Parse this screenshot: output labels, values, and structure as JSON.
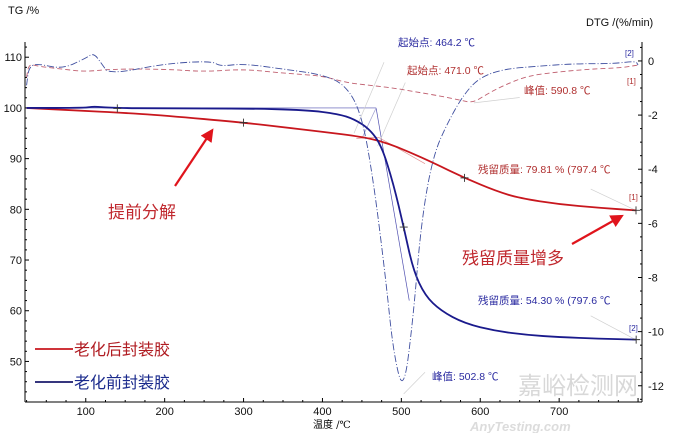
{
  "chart_data": {
    "type": "line",
    "xlabel": "温度 /℃",
    "ylabel_left": "TG /%",
    "ylabel_right": "DTG /(%/min)",
    "xlim": [
      23,
      805
    ],
    "ylim_left": [
      42,
      113
    ],
    "ylim_right": [
      -12.6,
      0.7
    ],
    "x_ticks": [
      100,
      200,
      300,
      400,
      500,
      600,
      700
    ],
    "y_ticks_left": [
      50,
      60,
      70,
      80,
      90,
      100,
      110
    ],
    "y_ticks_right": [
      -12,
      -10,
      -8,
      -6,
      -4,
      -2,
      0
    ],
    "grid": false,
    "legend_placement": "bottom-left",
    "colors": {
      "aged": "#c8171e",
      "unaged": "#1a1a8c",
      "aged_dtg": "#c06070",
      "unaged_dtg": "#4050a0"
    },
    "series": [
      {
        "name": "老化后封装胶",
        "axis": "left",
        "style": "solid",
        "color": "#c8171e",
        "x": [
          25,
          100,
          140,
          200,
          300,
          350,
          400,
          450,
          480,
          510,
          540,
          580,
          620,
          650,
          700,
          750,
          797
        ],
        "y": [
          100,
          99.4,
          99.1,
          98.5,
          97.1,
          96.2,
          95.3,
          94.3,
          93.2,
          91.3,
          89.2,
          86.2,
          83.6,
          82.2,
          81,
          80.3,
          79.8
        ]
      },
      {
        "name": "老化前封装胶",
        "axis": "left",
        "style": "solid",
        "color": "#1a1a8c",
        "x": [
          25,
          100,
          110,
          130,
          200,
          300,
          380,
          420,
          440,
          460,
          475,
          490,
          503,
          515,
          530,
          550,
          580,
          620,
          660,
          700,
          750,
          797.6
        ],
        "y": [
          100,
          100,
          100.3,
          100,
          99.9,
          99.9,
          99.6,
          98.8,
          97.8,
          95.8,
          92.5,
          85,
          76.5,
          68,
          63,
          60,
          57.5,
          56,
          55.2,
          54.8,
          54.5,
          54.3
        ]
      },
      {
        "name": "DTG [1]",
        "axis": "right",
        "style": "dashed",
        "color": "#c06070",
        "x": [
          25,
          28,
          40,
          70,
          100,
          130,
          200,
          250,
          300,
          350,
          400,
          430,
          460,
          490,
          520,
          550,
          575,
          590.8,
          610,
          630,
          660,
          700,
          740,
          780,
          800
        ],
        "y": [
          -0.6,
          -0.1,
          -0.2,
          -0.3,
          -0.4,
          -0.3,
          -0.3,
          -0.4,
          -0.3,
          -0.45,
          -0.55,
          -0.8,
          -0.9,
          -1.0,
          -1.15,
          -1.3,
          -1.45,
          -1.55,
          -1.2,
          -0.9,
          -0.55,
          -0.4,
          -0.3,
          -0.25,
          -0.15
        ]
      },
      {
        "name": "DTG [2]",
        "axis": "right",
        "style": "dash-dot",
        "color": "#4050a0",
        "x": [
          25,
          28,
          40,
          70,
          100,
          110,
          120,
          130,
          200,
          260,
          270,
          300,
          350,
          400,
          430,
          450,
          465,
          480,
          490,
          502.8,
          515,
          525,
          540,
          560,
          580,
          600,
          630,
          670,
          720,
          770,
          797,
          800
        ],
        "y": [
          -0.9,
          -0.2,
          -0.1,
          -0.3,
          0.1,
          0.3,
          -0.1,
          -0.5,
          -0.1,
          0,
          -0.2,
          -0.1,
          -0.3,
          -0.5,
          -0.9,
          -2,
          -4.5,
          -8,
          -10.8,
          -12.3,
          -9.5,
          -6,
          -3.5,
          -2.2,
          -1.2,
          -0.6,
          -0.3,
          -0.2,
          -0.1,
          -0.1,
          0,
          -0.15
        ]
      }
    ],
    "markers": [
      {
        "series": "老化后封装胶",
        "points": [
          [
            300,
            97.1
          ],
          [
            580,
            86.2
          ],
          [
            797.4,
            79.8
          ]
        ]
      },
      {
        "series": "老化前封装胶",
        "points": [
          [
            140,
            99.9
          ],
          [
            503,
            76.5
          ],
          [
            797.6,
            54.3
          ]
        ]
      }
    ],
    "annotations": {
      "onset_unaged": "起始点: 464.2 ℃",
      "onset_aged": "起始点: 471.0 ℃",
      "peak_aged": "峰值: 590.8 ℃",
      "residue_aged": "残留质量: 79.81 % (797.4 ℃",
      "residue_unaged": "残留质量: 54.30 % (797.6 ℃",
      "peak_unaged": "峰值: 502.8 ℃",
      "tag1_top": "[1]",
      "tag2_top": "[2]",
      "tag1_curve": "[1]",
      "tag2_curve": "[2]",
      "note_early": "提前分解",
      "note_residue": "残留质量增多"
    },
    "legend": [
      "老化后封装胶",
      "老化前封装胶"
    ]
  },
  "watermark": {
    "cn": "嘉峪检测网",
    "en": "AnyTesting.com"
  }
}
